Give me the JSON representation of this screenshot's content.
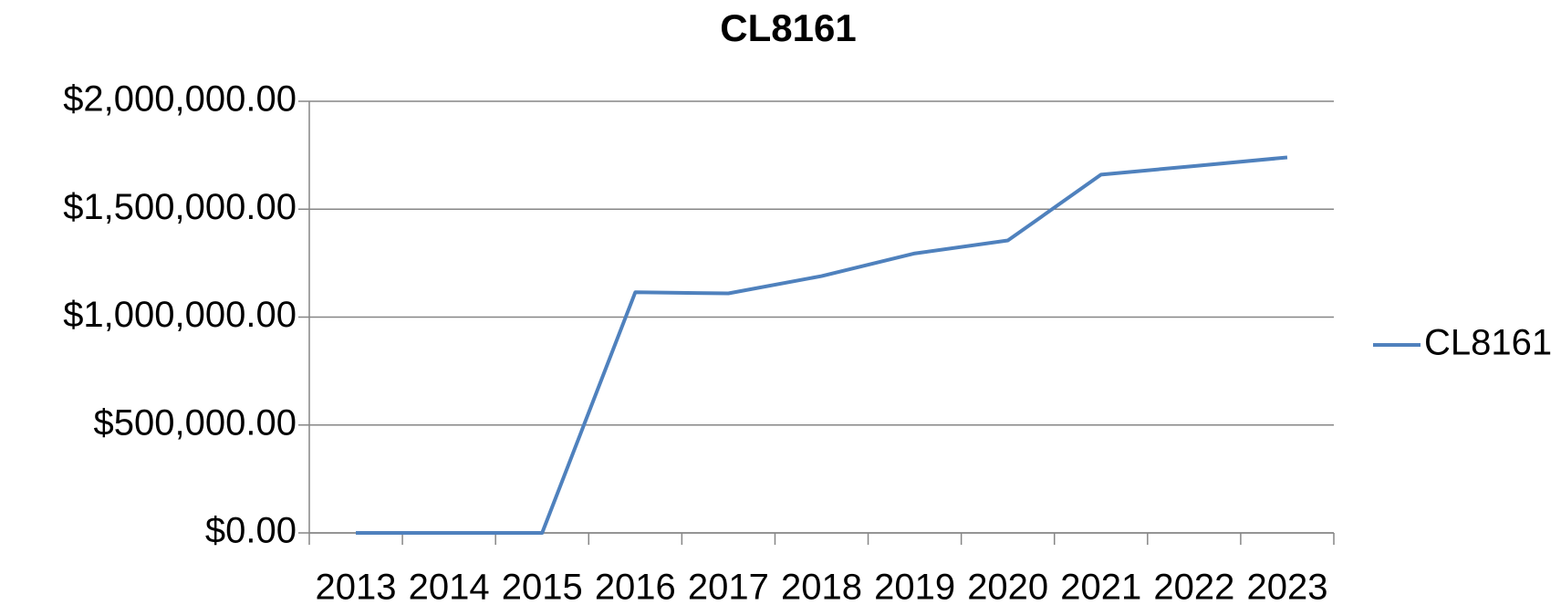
{
  "chart_data": {
    "type": "line",
    "title": "CL8161",
    "categories": [
      "2013",
      "2014",
      "2015",
      "2016",
      "2017",
      "2018",
      "2019",
      "2020",
      "2021",
      "2022",
      "2023"
    ],
    "series": [
      {
        "name": "CL8161",
        "color": "#4f81bd",
        "values": [
          0,
          0,
          0,
          1115000,
          1110000,
          1190000,
          1295000,
          1355000,
          1660000,
          1700000,
          1740000
        ]
      }
    ],
    "ylim": [
      0,
      2000000
    ],
    "yticks": [
      {
        "value": 0,
        "label": "$0.00"
      },
      {
        "value": 500000,
        "label": "$500,000.00"
      },
      {
        "value": 1000000,
        "label": "$1,000,000.00"
      },
      {
        "value": 1500000,
        "label": "$1,500,000.00"
      },
      {
        "value": 2000000,
        "label": "$2,000,000.00"
      }
    ],
    "grid": true,
    "legend": "right"
  }
}
